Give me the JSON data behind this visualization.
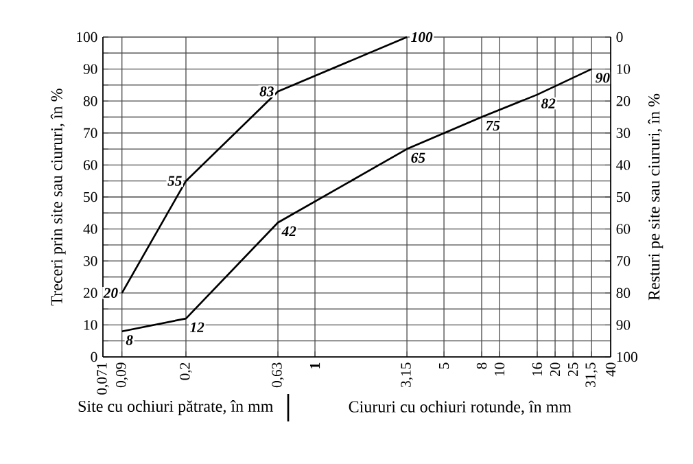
{
  "chart_data": {
    "type": "line",
    "xlabel": "Site cu ochiuri pătrate, în mm",
    "ylabel": "Treceri prin site sau ciururi, în %",
    "y2label": "Resturi pe site sau ciururi, în %",
    "annotations": [
      "Ciururi cu ochiuri rotunde, în mm"
    ],
    "log": "x",
    "xlim": [
      0.071,
      40
    ],
    "xticks": [
      {
        "value": 0.071,
        "label": "0,071"
      },
      {
        "value": 0.09,
        "label": "0,09"
      },
      {
        "value": 0.2,
        "label": "0,2"
      },
      {
        "value": 0.63,
        "label": "0,63"
      },
      {
        "value": 1,
        "label": "**1**"
      },
      {
        "value": 3.15,
        "label": "3,15"
      },
      5,
      8,
      10,
      16,
      20,
      25,
      {
        "value": 31.5,
        "label": "31,5"
      },
      40
    ],
    "ylim": [
      0,
      100
    ],
    "yticks": [
      0,
      {
        "value": 5,
        "label": null
      },
      10,
      {
        "value": 15,
        "label": null
      },
      20,
      {
        "value": 25,
        "label": null
      },
      30,
      {
        "value": 35,
        "label": null
      },
      40,
      {
        "value": 45,
        "label": null
      },
      50,
      {
        "value": 55,
        "label": null
      },
      60,
      {
        "value": 65,
        "label": null
      },
      70,
      {
        "value": 75,
        "label": null
      },
      80,
      {
        "value": 85,
        "label": null
      },
      90,
      {
        "value": 95,
        "label": null
      },
      100
    ],
    "y2lim": [
      100,
      0
    ],
    "y2ticks": [
      0,
      10,
      20,
      30,
      40,
      50,
      60,
      70,
      80,
      90,
      100
    ],
    "grid": true,
    "marker": "none",
    "line_style": "solid",
    "data_labels": true,
    "series": [
      {
        "color": "#000000",
        "x": [
          0.09,
          0.2,
          0.63,
          3.15
        ],
        "values": [
          20,
          55,
          83,
          100
        ]
      },
      {
        "color": "#000000",
        "x": [
          0.09,
          0.2,
          0.63,
          3.15,
          8,
          16,
          31.5
        ],
        "values": [
          8,
          12,
          42,
          65,
          75,
          82,
          90
        ]
      }
    ]
  }
}
